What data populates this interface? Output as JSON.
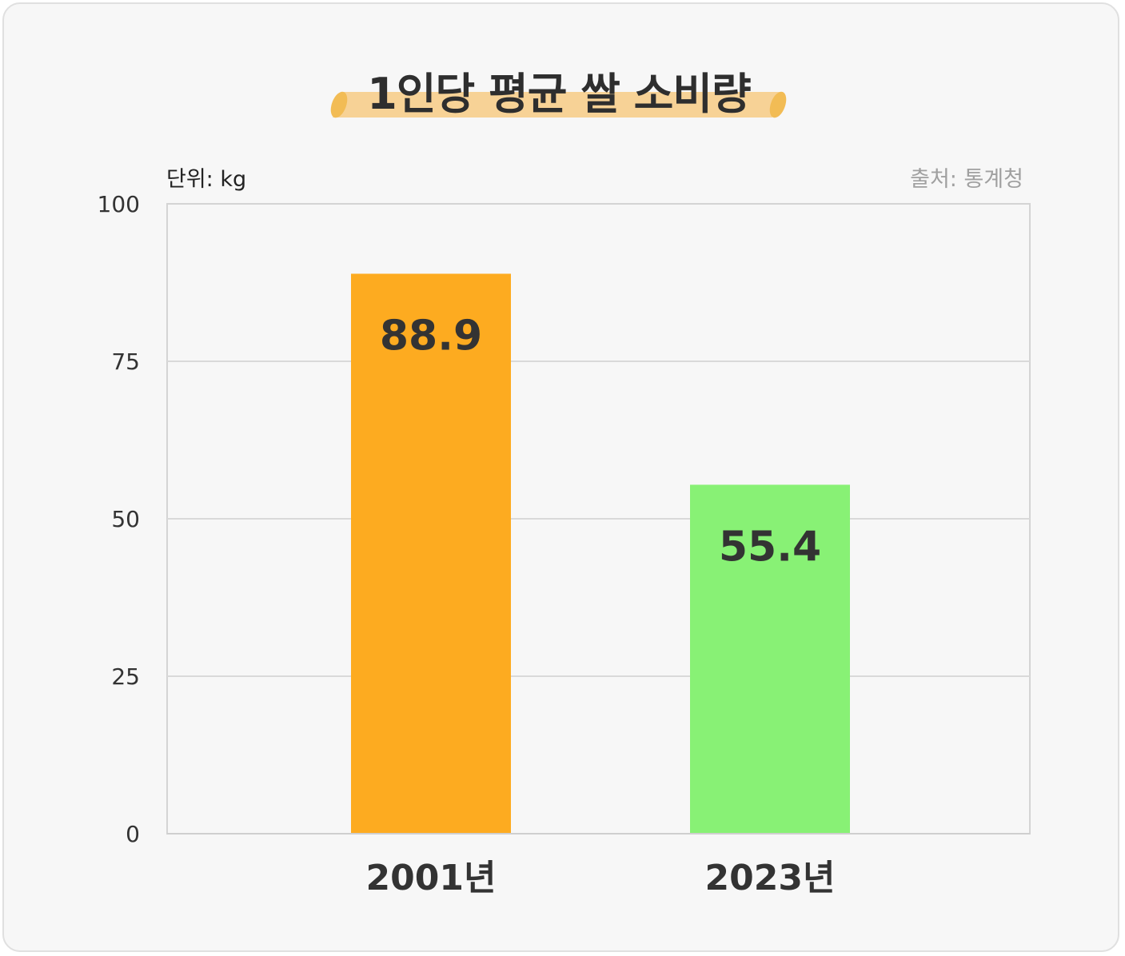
{
  "chart_data": {
    "type": "bar",
    "title": "1인당 평균 쌀 소비량",
    "unit_label": "단위: kg",
    "source_label": "출처: 통계청",
    "categories": [
      "2001년",
      "2023년"
    ],
    "values": [
      88.9,
      55.4
    ],
    "value_labels": [
      "88.9",
      "55.4"
    ],
    "bar_colors": [
      "#FDAB20",
      "#88F175"
    ],
    "ylim": [
      0,
      100
    ],
    "yticks": [
      0,
      25,
      50,
      75,
      100
    ],
    "grid": true,
    "legend": "none"
  }
}
